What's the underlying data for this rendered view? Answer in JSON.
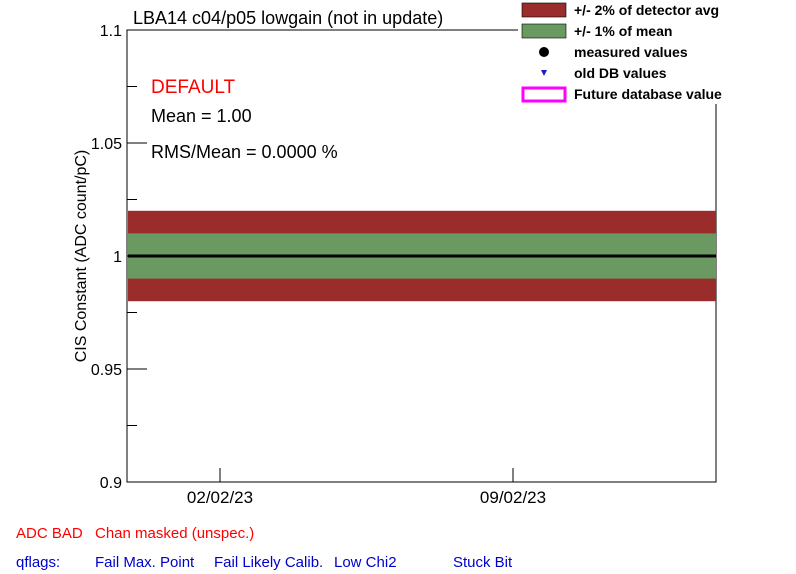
{
  "chart_data": {
    "type": "line",
    "title": "LBA14 c04/p05 lowgain (not in update)",
    "ylabel": "CIS Constant (ADC count/pC)",
    "xlabel": "",
    "ylim": [
      0.9,
      1.1
    ],
    "yticks": [
      0.9,
      0.95,
      1,
      1.05,
      1.1
    ],
    "ytick_labels": [
      "0.9",
      "0.95",
      "1",
      "1.05",
      "1.1"
    ],
    "xtick_labels": [
      "02/02/23",
      "09/02/23"
    ],
    "mean": 1.0,
    "band_1pct": [
      0.99,
      1.01
    ],
    "band_2pct": [
      0.98,
      1.02
    ],
    "grid": false,
    "legend_position": "top-right",
    "legend": [
      {
        "label": "+/- 2% of detector avg",
        "kind": "box",
        "color": "#9b2c2c"
      },
      {
        "label": "+/- 1% of mean",
        "kind": "box",
        "color": "#6a9a62"
      },
      {
        "label": "measured values",
        "kind": "dot",
        "color": "#000000"
      },
      {
        "label": "old DB values",
        "kind": "triangle",
        "color": "#1a1acc"
      },
      {
        "label": "Future database value",
        "kind": "outline",
        "color": "#ff00ff"
      }
    ],
    "annotations": {
      "status": "DEFAULT",
      "status_color": "#ff0000",
      "mean_text": "Mean = 1.00",
      "rms_text": "RMS/Mean = 0.0000 %"
    }
  },
  "footer": {
    "adc_bad": "ADC BAD",
    "chan_masked": "Chan masked (unspec.)",
    "qflags_label": "qflags:",
    "flags": [
      "Fail Max. Point",
      "Fail Likely Calib.",
      "Low Chi2",
      "Stuck Bit"
    ],
    "red": "#ff0000",
    "blue": "#0000cc"
  }
}
